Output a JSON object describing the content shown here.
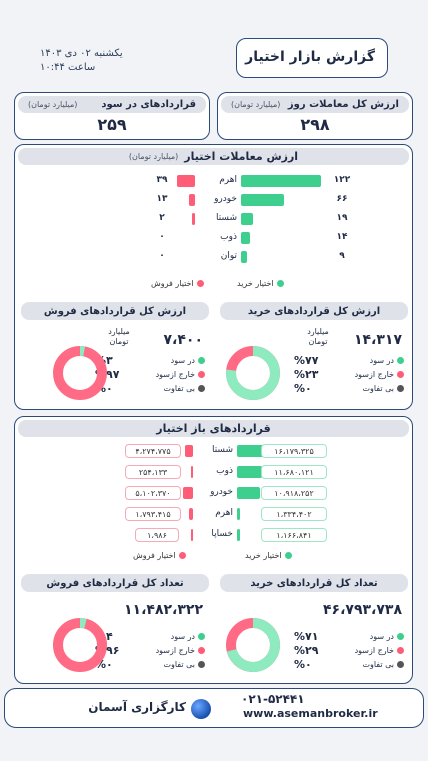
{
  "header": {
    "title": "گزارش بازار اختیار",
    "date_line": "یکشنبه ۰۲ دی ۱۴۰۳",
    "time_line": "ساعت ۱۰:۴۴"
  },
  "summary": {
    "total_value_label": "ارزش کل معاملات روز",
    "total_value_unit": "(میلیارد تومان)",
    "total_value": "۲۹۸",
    "in_money_label": "قراردادهای در سود",
    "in_money_unit": "(میلیارد تومان)",
    "in_money_value": "۲۵۹"
  },
  "trades": {
    "title": "ارزش معاملات اختیار",
    "unit": "(میلیارد تومان)",
    "rows": [
      {
        "label": "اهرم",
        "buy": "۱۲۲",
        "sell": "۳۹",
        "buy_value": 122,
        "sell_value": 39
      },
      {
        "label": "خودرو",
        "buy": "۶۶",
        "sell": "۱۳",
        "buy_value": 66,
        "sell_value": 13
      },
      {
        "label": "شستا",
        "buy": "۱۹",
        "sell": "۲",
        "buy_value": 19,
        "sell_value": 2
      },
      {
        "label": "ذوب",
        "buy": "۱۴",
        "sell": "۰",
        "buy_value": 14,
        "sell_value": 0
      },
      {
        "label": "توان",
        "buy": "۹",
        "sell": "۰",
        "buy_value": 9,
        "sell_value": 0
      }
    ],
    "legend_buy": "اختیار خرید",
    "legend_sell": "اختیار فروش"
  },
  "buy_value_card": {
    "title": "ارزش کل قراردادهای خرید",
    "value": "۱۴،۳۱۷",
    "unit_line1": "میلیارد",
    "unit_line2": "تومان",
    "stats": [
      {
        "pct": "%۷۷",
        "label": "در سود",
        "color": "#3ecf8e"
      },
      {
        "pct": "%۲۳",
        "label": "خارج ازسود",
        "color": "#ff5c77"
      },
      {
        "pct": "%۰",
        "label": "بی تفاوت",
        "color": "#555555"
      }
    ],
    "in_money_fraction": 0.77
  },
  "sell_value_card": {
    "title": "ارزش کل قراردادهای فروش",
    "value": "۷،۴۰۰",
    "unit_line1": "میلیارد",
    "unit_line2": "تومان",
    "stats": [
      {
        "pct": "%۳",
        "label": "در سود",
        "color": "#3ecf8e"
      },
      {
        "pct": "%۹۷",
        "label": "خارج ازسود",
        "color": "#ff5c77"
      },
      {
        "pct": "%۰",
        "label": "بی تفاوت",
        "color": "#555555"
      }
    ],
    "in_money_fraction": 0.03
  },
  "open_interest": {
    "title": "قراردادهای باز اختیار",
    "rows": [
      {
        "label": "شستا",
        "buy": "۱۶،۱۷۹،۳۲۵",
        "sell": "۴،۲۷۴،۷۷۵",
        "buy_value": 16179325,
        "sell_value": 4274775
      },
      {
        "label": "ذوب",
        "buy": "۱۱،۶۸۰،۱۲۱",
        "sell": "۲۵۴،۱۳۳",
        "buy_value": 11680121,
        "sell_value": 254133
      },
      {
        "label": "خودرو",
        "buy": "۱۰،۹۱۸،۲۵۲",
        "sell": "۵،۱۰۲،۳۷۰",
        "buy_value": 10918252,
        "sell_value": 5102370
      },
      {
        "label": "اهرم",
        "buy": "۱،۳۳۴،۴۰۲",
        "sell": "۱،۷۹۳،۴۱۵",
        "buy_value": 1334402,
        "sell_value": 1793415
      },
      {
        "label": "خساپا",
        "buy": "۱،۱۶۶،۸۴۱",
        "sell": "۱،۹۸۶",
        "buy_value": 1166841,
        "sell_value": 1986
      }
    ],
    "legend_buy": "اختیار خرید",
    "legend_sell": "اختیار فروش"
  },
  "buy_count_card": {
    "title": "تعداد کل قراردادهای خرید",
    "value": "۴۶،۷۹۳،۷۳۸",
    "stats": [
      {
        "pct": "%۷۱",
        "label": "در سود",
        "color": "#3ecf8e"
      },
      {
        "pct": "%۲۹",
        "label": "خارج ازسود",
        "color": "#ff5c77"
      },
      {
        "pct": "%۰",
        "label": "بی تفاوت",
        "color": "#555555"
      }
    ],
    "in_money_fraction": 0.71
  },
  "sell_count_card": {
    "title": "تعداد کل قراردادهای فروش",
    "value": "۱۱،۴۸۲،۳۲۲",
    "stats": [
      {
        "pct": "%۴",
        "label": "در سود",
        "color": "#3ecf8e"
      },
      {
        "pct": "%۹۶",
        "label": "خارج ازسود",
        "color": "#ff5c77"
      },
      {
        "pct": "%۰",
        "label": "بی تفاوت",
        "color": "#555555"
      }
    ],
    "in_money_fraction": 0.04
  },
  "footer": {
    "phone": "۰۲۱-۵۲۴۴۱",
    "website": "www.asemanbroker.ir",
    "brand": "کارگزاری آسمان"
  },
  "colors": {
    "green": "#3ecf8e",
    "red": "#ff5c77",
    "navy": "#2c4a7a"
  }
}
